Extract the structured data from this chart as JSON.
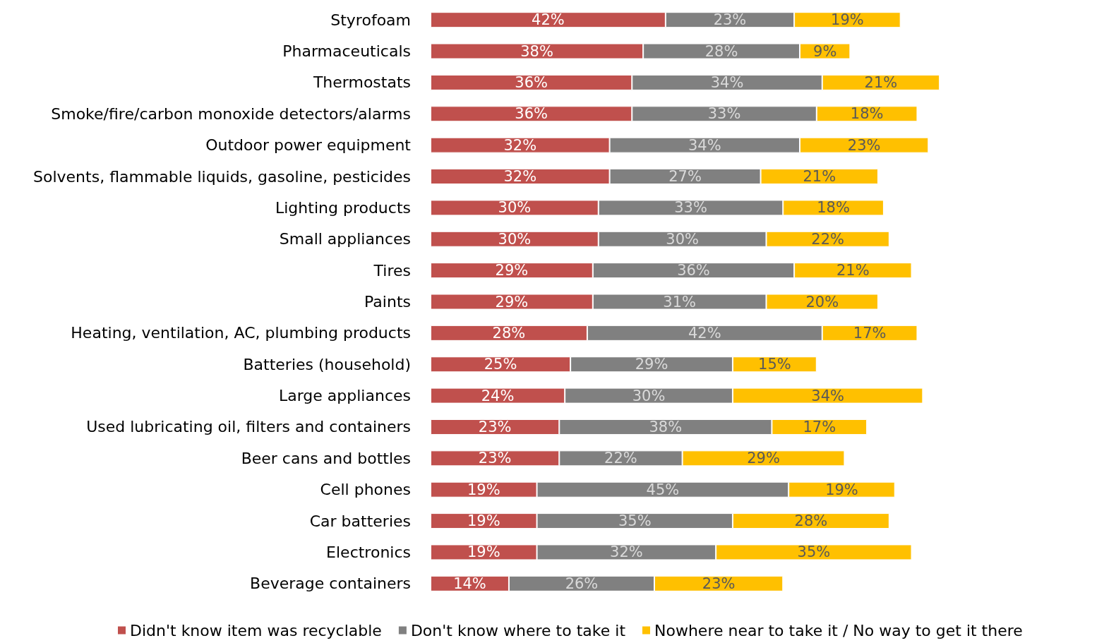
{
  "chart_data": {
    "type": "bar",
    "orientation": "horizontal",
    "stacked": true,
    "legend": "bottom",
    "categories": [
      "Styrofoam",
      "Pharmaceuticals",
      "Thermostats",
      "Smoke/fire/carbon monoxide detectors/alarms",
      "Outdoor power equipment",
      "Solvents, flammable liquids, gasoline, pesticides",
      "Lighting products",
      "Small appliances",
      "Tires",
      "Paints",
      "Heating, ventilation, AC, plumbing products",
      "Batteries (household)",
      "Large appliances",
      "Used lubricating oil, filters and containers",
      "Beer cans and bottles",
      "Cell phones",
      "Car batteries",
      "Electronics",
      "Beverage containers"
    ],
    "series": [
      {
        "name": "Didn't know item was recyclable",
        "color": "#c0504d",
        "values": [
          42,
          38,
          36,
          36,
          32,
          32,
          30,
          30,
          29,
          29,
          28,
          25,
          24,
          23,
          23,
          19,
          19,
          19,
          14
        ],
        "value_labels": [
          "42%",
          "38%",
          "36%",
          "36%",
          "32%",
          "32%",
          "30%",
          "30%",
          "29%",
          "29%",
          "28%",
          "25%",
          "24%",
          "23%",
          "23%",
          "19%",
          "19%",
          "19%",
          "14%"
        ]
      },
      {
        "name": "Don't know where to take it",
        "color": "#808080",
        "values": [
          23,
          28,
          34,
          33,
          34,
          27,
          33,
          30,
          36,
          31,
          42,
          29,
          30,
          38,
          22,
          45,
          35,
          32,
          26
        ],
        "value_labels": [
          "23%",
          "28%",
          "34%",
          "33%",
          "34%",
          "27%",
          "33%",
          "30%",
          "36%",
          "31%",
          "42%",
          "29%",
          "30%",
          "38%",
          "22%",
          "45%",
          "35%",
          "32%",
          "26%"
        ]
      },
      {
        "name": "Nowhere near to take it / No way to get it there",
        "color": "#ffc000",
        "values": [
          19,
          9,
          21,
          18,
          23,
          21,
          18,
          22,
          21,
          20,
          17,
          15,
          34,
          17,
          29,
          19,
          28,
          35,
          23
        ],
        "value_labels": [
          "19%",
          "9%",
          "21%",
          "18%",
          "23%",
          "21%",
          "18%",
          "22%",
          "21%",
          "20%",
          "17%",
          "15%",
          "34%",
          "17%",
          "29%",
          "19%",
          "28%",
          "35%",
          "23%"
        ]
      }
    ]
  }
}
